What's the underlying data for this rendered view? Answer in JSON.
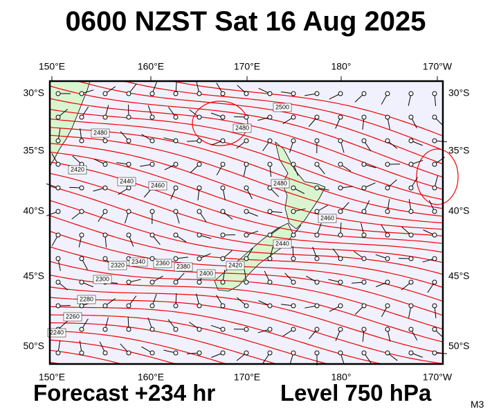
{
  "header": {
    "title": "0600 NZST Sat 16 Aug 2025"
  },
  "map": {
    "lon_labels": [
      "150°E",
      "160°E",
      "170°E",
      "180°",
      "170°W"
    ],
    "lat_labels": [
      "30°S",
      "35°S",
      "40°S",
      "45°S",
      "50°S"
    ],
    "contour_labels": [
      "2480",
      "2420",
      "2440",
      "2460",
      "2480",
      "2500",
      "2480",
      "2460",
      "2440",
      "2420",
      "2400",
      "2380",
      "2360",
      "2340",
      "2320",
      "2300",
      "2280",
      "2260",
      "2240"
    ]
  },
  "footer": {
    "forecast": "Forecast +234 hr",
    "level": "Level 750 hPa",
    "model": "M3"
  }
}
